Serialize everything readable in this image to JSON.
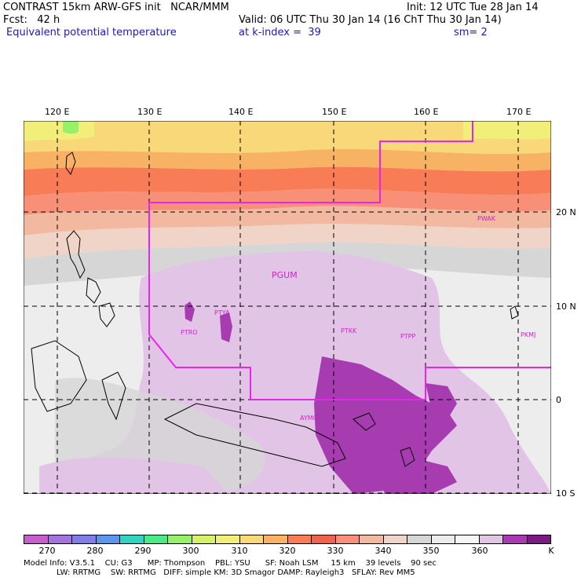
{
  "header": {
    "line1_left": "CONTRAST 15km ARW-GFS init   NCAR/MMM",
    "line1_right": "Init: 12 UTC Tue 28 Jan 14",
    "line2_left": "Fcst:   42 h",
    "line2_right": "Valid: 06 UTC Thu 30 Jan 14 (16 ChT Thu 30 Jan 14)",
    "line3_left": "Equivalent potential temperature",
    "line3_mid": "at k-index =  39",
    "line3_right": "sm= 2"
  },
  "map": {
    "lon_labels": [
      "120 E",
      "130 E",
      "140 E",
      "150 E",
      "160 E",
      "170 E"
    ],
    "lat_labels": [
      "20 N",
      "10 N",
      "0",
      "10 S"
    ],
    "stations": [
      "PGUM",
      "PTYA",
      "PTRO",
      "PTKK",
      "PTPP",
      "PKMJ",
      "PWAK",
      "AYMO"
    ],
    "colors": {
      "boundary": "#ee22ee",
      "coast": "#000000",
      "grid": "#000000"
    }
  },
  "colorbar": {
    "labels": [
      "270",
      "280",
      "290",
      "300",
      "310",
      "320",
      "330",
      "340",
      "350",
      "360"
    ],
    "unit": "K",
    "colors": [
      "#c65ecc",
      "#a274dc",
      "#7e7ee6",
      "#5c96ec",
      "#30d4c2",
      "#48ec86",
      "#96f06a",
      "#d6f06a",
      "#f2ee7a",
      "#f8d878",
      "#f8b264",
      "#f87c56",
      "#f0624a",
      "#f89078",
      "#f2b8a0",
      "#f0d4c8",
      "#d6d6d6",
      "#ececec",
      "#f6f6f6",
      "#e2c4e6",
      "#a63cb0",
      "#7a1a82"
    ]
  },
  "footer": {
    "line1": "Model Info: V3.5.1    CU: G3      MP: Thompson    PBL: YSU      SF: Noah LSM     15 km    39 levels    90 sec",
    "line2": "LW: RRTMG    SW: RRTMG   DIFF: simple KM: 3D Smagor DAMP: Rayleigh3   SFLAY: Rev MM5"
  }
}
